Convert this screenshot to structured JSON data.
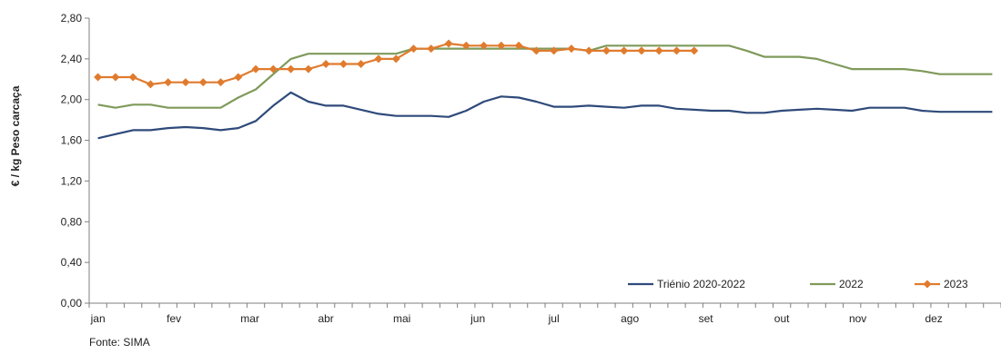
{
  "chart_data": {
    "type": "line",
    "ylabel": "€ / kg Peso carcaça",
    "ylim": [
      0,
      2.8
    ],
    "y_ticks": [
      "0,00",
      "0,40",
      "0,80",
      "1,20",
      "1,60",
      "2,00",
      "2,40",
      "2,80"
    ],
    "month_labels": [
      "jan",
      "fev",
      "mar",
      "abr",
      "mai",
      "jun",
      "jul",
      "ago",
      "set",
      "out",
      "nov",
      "dez"
    ],
    "x_week_count": 52,
    "legend_position": "bottom-right",
    "series": [
      {
        "name": "Triénio 2020-2022",
        "color": "#2F4A7A",
        "marker": "none",
        "values": [
          1.62,
          1.66,
          1.7,
          1.7,
          1.72,
          1.73,
          1.72,
          1.7,
          1.72,
          1.79,
          1.94,
          2.07,
          1.98,
          1.94,
          1.94,
          1.9,
          1.86,
          1.84,
          1.84,
          1.84,
          1.83,
          1.89,
          1.98,
          2.03,
          2.02,
          1.98,
          1.93,
          1.93,
          1.94,
          1.93,
          1.92,
          1.94,
          1.94,
          1.91,
          1.9,
          1.89,
          1.89,
          1.87,
          1.87,
          1.89,
          1.9,
          1.91,
          1.9,
          1.89,
          1.92,
          1.92,
          1.92,
          1.89,
          1.88,
          1.88,
          1.88,
          1.88
        ]
      },
      {
        "name": "2022",
        "color": "#7F9A5A",
        "marker": "none",
        "values": [
          1.95,
          1.92,
          1.95,
          1.95,
          1.92,
          1.92,
          1.92,
          1.92,
          2.02,
          2.1,
          2.25,
          2.4,
          2.45,
          2.45,
          2.45,
          2.45,
          2.45,
          2.45,
          2.5,
          2.5,
          2.5,
          2.5,
          2.5,
          2.5,
          2.5,
          2.5,
          2.5,
          2.5,
          2.48,
          2.53,
          2.53,
          2.53,
          2.53,
          2.53,
          2.53,
          2.53,
          2.53,
          2.48,
          2.42,
          2.42,
          2.42,
          2.4,
          2.35,
          2.3,
          2.3,
          2.3,
          2.3,
          2.28,
          2.25,
          2.25,
          2.25,
          2.25
        ]
      },
      {
        "name": "2023",
        "color": "#E07B2E",
        "marker": "diamond",
        "values": [
          2.22,
          2.22,
          2.22,
          2.15,
          2.17,
          2.17,
          2.17,
          2.17,
          2.22,
          2.3,
          2.3,
          2.3,
          2.3,
          2.35,
          2.35,
          2.35,
          2.4,
          2.4,
          2.5,
          2.5,
          2.55,
          2.53,
          2.53,
          2.53,
          2.53,
          2.48,
          2.48,
          2.5,
          2.48,
          2.48,
          2.48,
          2.48,
          2.48,
          2.48,
          2.48
        ]
      }
    ]
  },
  "source_note": "Fonte: SIMA"
}
